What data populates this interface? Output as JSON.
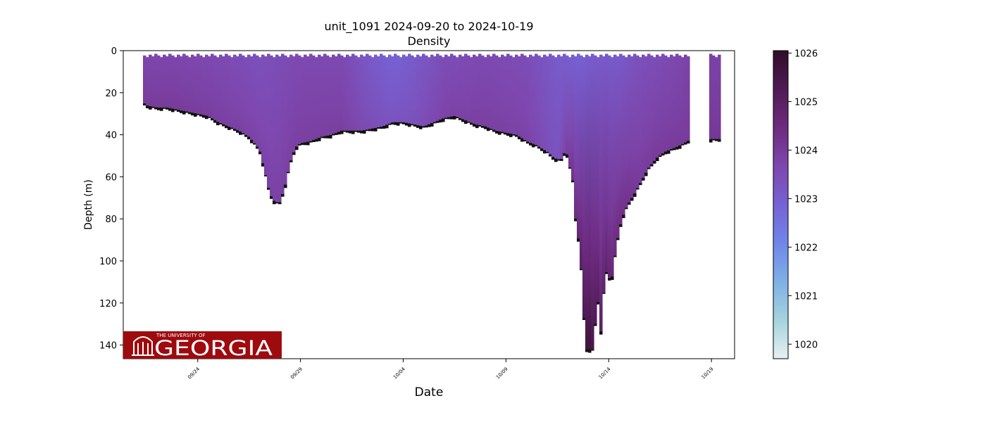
{
  "chart_data": {
    "type": "heatmap",
    "title": "unit_1091 2024-09-20 to 2024-10-19",
    "subtitle": "Density",
    "xlabel": "Date",
    "ylabel": "Depth (m)",
    "xlim": [
      "2024-09-20T09:00",
      "2024-10-20T03:00"
    ],
    "ylim": [
      146.5,
      0
    ],
    "y_inverted": true,
    "x_ticks": [
      {
        "date": "2024-09-24",
        "label": "09/24"
      },
      {
        "date": "2024-09-29",
        "label": "09/29"
      },
      {
        "date": "2024-10-04",
        "label": "10/04"
      },
      {
        "date": "2024-10-09",
        "label": "10/09"
      },
      {
        "date": "2024-10-14",
        "label": "10/14"
      },
      {
        "date": "2024-10-19",
        "label": "10/19"
      }
    ],
    "y_ticks": [
      0,
      20,
      40,
      60,
      80,
      100,
      120,
      140
    ],
    "colorbar": {
      "vmin": 1019.7,
      "vmax": 1026.05,
      "ticks": [
        1020,
        1021,
        1022,
        1023,
        1024,
        1025,
        1026
      ],
      "colormap": "dense",
      "stops": [
        "#e6f1f1",
        "#a5d3de",
        "#7fb0e6",
        "#6f87e8",
        "#7662d4",
        "#7e47ae",
        "#6e2a7f",
        "#501b55",
        "#300d2a"
      ]
    },
    "grid": false,
    "bottom_depth_profile": {
      "description": "Maximum profile depth over time (sea-floor boundary)",
      "points": [
        [
          "2024-09-21T07:00",
          24
        ],
        [
          "2024-09-21T12:00",
          26
        ],
        [
          "2024-09-22T00:00",
          27
        ],
        [
          "2024-09-22T12:00",
          27
        ],
        [
          "2024-09-23T00:00",
          28
        ],
        [
          "2024-09-23T12:00",
          29
        ],
        [
          "2024-09-24T00:00",
          30
        ],
        [
          "2024-09-24T12:00",
          31
        ],
        [
          "2024-09-25T00:00",
          34
        ],
        [
          "2024-09-25T12:00",
          36
        ],
        [
          "2024-09-26T00:00",
          38
        ],
        [
          "2024-09-26T12:00",
          41
        ],
        [
          "2024-09-27T00:00",
          47
        ],
        [
          "2024-09-27T06:00",
          57
        ],
        [
          "2024-09-27T12:00",
          68
        ],
        [
          "2024-09-27T18:00",
          72
        ],
        [
          "2024-09-28T00:00",
          72
        ],
        [
          "2024-09-28T06:00",
          64
        ],
        [
          "2024-09-28T12:00",
          53
        ],
        [
          "2024-09-28T18:00",
          46
        ],
        [
          "2024-09-29T00:00",
          44
        ],
        [
          "2024-09-29T12:00",
          43
        ],
        [
          "2024-09-30T00:00",
          41
        ],
        [
          "2024-09-30T12:00",
          40
        ],
        [
          "2024-10-01T00:00",
          38
        ],
        [
          "2024-10-01T12:00",
          38
        ],
        [
          "2024-10-02T00:00",
          38
        ],
        [
          "2024-10-02T12:00",
          37
        ],
        [
          "2024-10-03T00:00",
          36
        ],
        [
          "2024-10-03T12:00",
          34
        ],
        [
          "2024-10-04T00:00",
          34
        ],
        [
          "2024-10-04T12:00",
          35
        ],
        [
          "2024-10-05T00:00",
          36
        ],
        [
          "2024-10-05T12:00",
          34
        ],
        [
          "2024-10-06T00:00",
          32
        ],
        [
          "2024-10-06T12:00",
          31
        ],
        [
          "2024-10-07T00:00",
          33
        ],
        [
          "2024-10-07T12:00",
          35
        ],
        [
          "2024-10-08T00:00",
          36
        ],
        [
          "2024-10-08T12:00",
          38
        ],
        [
          "2024-10-09T00:00",
          39
        ],
        [
          "2024-10-09T12:00",
          40
        ],
        [
          "2024-10-10T00:00",
          43
        ],
        [
          "2024-10-10T12:00",
          45
        ],
        [
          "2024-10-11T00:00",
          48
        ],
        [
          "2024-10-11T08:00",
          51
        ],
        [
          "2024-10-11T16:00",
          52
        ],
        [
          "2024-10-11T22:00",
          47
        ],
        [
          "2024-10-12T06:00",
          62
        ],
        [
          "2024-10-12T10:00",
          85
        ],
        [
          "2024-10-12T14:00",
          92
        ],
        [
          "2024-10-12T18:00",
          120
        ],
        [
          "2024-10-12T21:00",
          142
        ],
        [
          "2024-10-13T06:00",
          142
        ],
        [
          "2024-10-13T09:00",
          125
        ],
        [
          "2024-10-13T12:00",
          118
        ],
        [
          "2024-10-13T15:00",
          135
        ],
        [
          "2024-10-13T18:00",
          115
        ],
        [
          "2024-10-13T21:00",
          105
        ],
        [
          "2024-10-14T03:00",
          110
        ],
        [
          "2024-10-14T09:00",
          92
        ],
        [
          "2024-10-14T15:00",
          80
        ],
        [
          "2024-10-14T21:00",
          74
        ],
        [
          "2024-10-15T06:00",
          68
        ],
        [
          "2024-10-15T14:00",
          62
        ],
        [
          "2024-10-15T22:00",
          56
        ],
        [
          "2024-10-16T08:00",
          51
        ],
        [
          "2024-10-16T18:00",
          48
        ],
        [
          "2024-10-17T06:00",
          46
        ],
        [
          "2024-10-17T16:00",
          44
        ],
        [
          "2024-10-18T00:00",
          42
        ]
      ]
    },
    "density_columns": [
      [
        "2024-09-21T07:00",
        1023.7,
        1024.0
      ],
      [
        "2024-09-23T00:00",
        1023.7,
        1024.0
      ],
      [
        "2024-09-25T00:00",
        1023.6,
        1023.9
      ],
      [
        "2024-09-27T00:00",
        1023.4,
        1023.8
      ],
      [
        "2024-09-29T00:00",
        1023.6,
        1023.9
      ],
      [
        "2024-10-01T00:00",
        1023.6,
        1023.9
      ],
      [
        "2024-10-02T12:00",
        1023.1,
        1023.5
      ],
      [
        "2024-10-03T12:00",
        1022.9,
        1023.3
      ],
      [
        "2024-10-04T12:00",
        1023.1,
        1023.4
      ],
      [
        "2024-10-06T00:00",
        1023.5,
        1023.8
      ],
      [
        "2024-10-08T00:00",
        1023.6,
        1023.9
      ],
      [
        "2024-10-10T00:00",
        1023.5,
        1023.8
      ],
      [
        "2024-10-11T12:00",
        1023.1,
        1023.3
      ],
      [
        "2024-10-12T12:00",
        1022.9,
        1024.6
      ],
      [
        "2024-10-13T00:00",
        1023.0,
        1025.8
      ],
      [
        "2024-10-13T12:00",
        1023.1,
        1025.0
      ],
      [
        "2024-10-14T12:00",
        1023.1,
        1024.4
      ],
      [
        "2024-10-15T12:00",
        1023.4,
        1024.0
      ],
      [
        "2024-10-17T00:00",
        1023.6,
        1024.0
      ],
      [
        "2024-10-18T00:00",
        1023.8,
        1024.0
      ],
      [
        "2024-10-19T00:00",
        1023.8,
        1024.1
      ]
    ],
    "density_columns_fields": [
      "time",
      "surface_density",
      "bottom_density"
    ],
    "data_gaps": [
      [
        "2024-09-18T00:00",
        "2024-09-21T07:00"
      ],
      [
        "2024-10-18T00:00",
        "2024-10-18T20:00"
      ],
      [
        "2024-10-19T12:00",
        "2024-10-22T00:00"
      ]
    ]
  },
  "logo": {
    "line1": "THE UNIVERSITY OF",
    "line2": "GEORGIA",
    "bg": "#9e0b0f"
  }
}
